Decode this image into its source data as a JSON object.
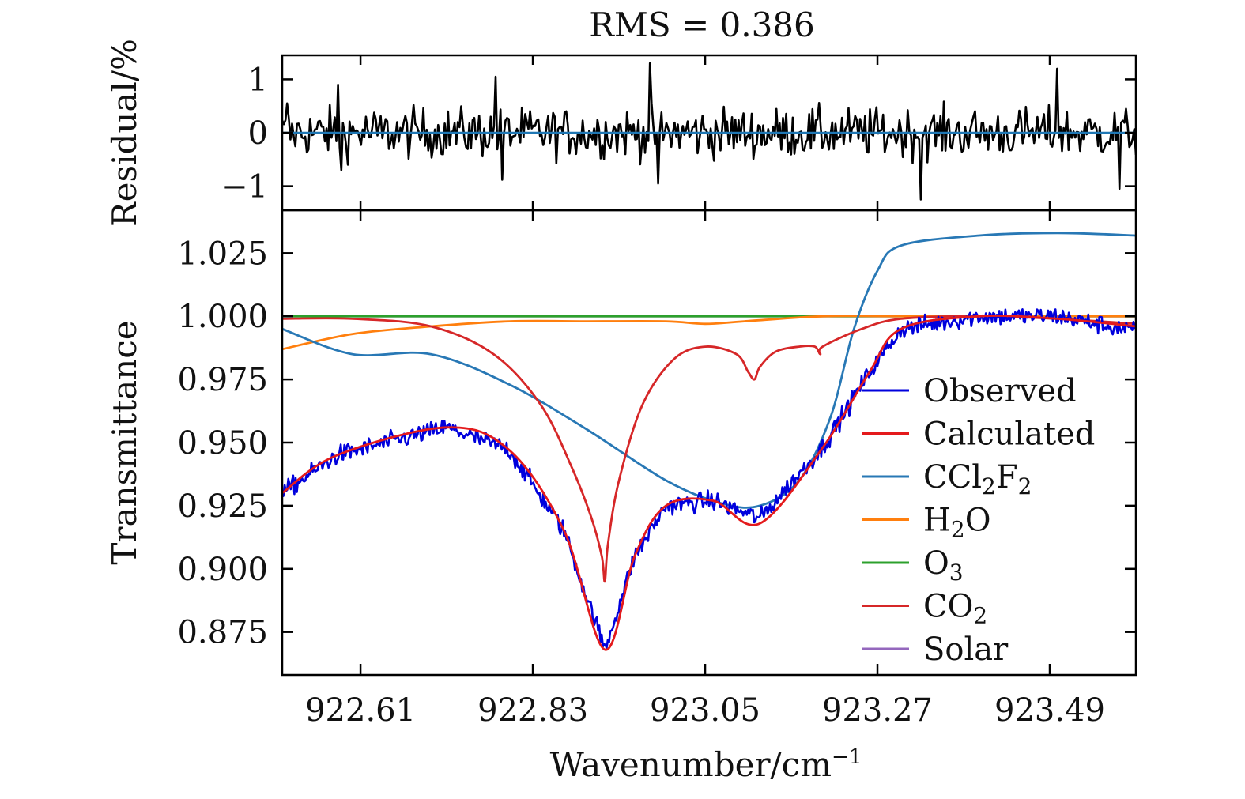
{
  "chart_data": [
    {
      "panel": "residual",
      "type": "line",
      "title_prefix": "RMS = ",
      "rms": "0.386",
      "ylabel": "Residual/%",
      "xlim": [
        922.51,
        923.6
      ],
      "ylim": [
        -1.45,
        1.45
      ],
      "y_ticks": [
        1,
        0,
        -1
      ],
      "y_tick_labels": [
        "1",
        "0",
        "−1"
      ],
      "zero_line_color": "#1f77b4",
      "residual_color": "#000000",
      "residual_x": [
        922.51,
        923.6
      ],
      "residual_peaks": [
        {
          "x": 922.517,
          "y": 0.55
        },
        {
          "x": 922.585,
          "y": -0.7
        },
        {
          "x": 922.582,
          "y": 0.9
        },
        {
          "x": 922.783,
          "y": 1.05
        },
        {
          "x": 922.79,
          "y": -0.88
        },
        {
          "x": 922.98,
          "y": 1.3
        },
        {
          "x": 922.99,
          "y": -0.95
        },
        {
          "x": 923.325,
          "y": -1.25
        },
        {
          "x": 923.5,
          "y": 1.2
        },
        {
          "x": 923.58,
          "y": -1.05
        }
      ]
    },
    {
      "panel": "transmittance",
      "type": "line",
      "xlabel": "Wavenumber/cm",
      "xlabel_sup": "−1",
      "ylabel": "Transmittance",
      "xlim": [
        922.51,
        923.6
      ],
      "ylim": [
        0.858,
        1.042
      ],
      "x_ticks": [
        922.61,
        922.83,
        923.05,
        923.27,
        923.49
      ],
      "x_tick_labels": [
        "922.61",
        "922.83",
        "923.05",
        "923.27",
        "923.49"
      ],
      "y_ticks": [
        1.025,
        1.0,
        0.975,
        0.95,
        0.925,
        0.9,
        0.875
      ],
      "y_tick_labels": [
        "1.025",
        "1.000",
        "0.975",
        "0.950",
        "0.925",
        "0.900",
        "0.875"
      ],
      "legend_position": "lower-right",
      "series": [
        {
          "name": "Observed",
          "color": "#0000dd",
          "noise": 0.004,
          "x": [
            922.51,
            922.58,
            922.72,
            922.8,
            922.87,
            922.922,
            922.96,
            923.0,
            923.06,
            923.12,
            923.2,
            923.26,
            923.3,
            923.4,
            923.5,
            923.6
          ],
          "y": [
            0.93,
            0.945,
            0.956,
            0.947,
            0.915,
            0.868,
            0.905,
            0.925,
            0.927,
            0.92,
            0.948,
            0.978,
            0.995,
            1.0,
            1.0,
            0.994
          ]
        },
        {
          "name": "Calculated",
          "color": "#e41a1c",
          "x": [
            922.51,
            922.58,
            922.72,
            922.8,
            922.87,
            922.922,
            922.96,
            923.0,
            923.06,
            923.12,
            923.2,
            923.26,
            923.3,
            923.4,
            923.5,
            923.6
          ],
          "y": [
            0.93,
            0.945,
            0.956,
            0.947,
            0.915,
            0.868,
            0.905,
            0.925,
            0.927,
            0.918,
            0.948,
            0.978,
            0.995,
            1.0,
            0.999,
            0.996
          ]
        },
        {
          "name": "CCl",
          "sub": "2",
          "name2": "F",
          "sub2": "2",
          "color": "#2878b5",
          "x": [
            922.51,
            922.6,
            922.7,
            922.8,
            922.9,
            923.0,
            923.07,
            923.12,
            923.17,
            923.21,
            923.24,
            923.27,
            923.3,
            923.4,
            923.5,
            923.6
          ],
          "y": [
            0.995,
            0.985,
            0.985,
            0.973,
            0.955,
            0.935,
            0.926,
            0.925,
            0.935,
            0.96,
            0.995,
            1.018,
            1.028,
            1.032,
            1.033,
            1.032
          ]
        },
        {
          "name": "H",
          "sub": "2",
          "name2": "O",
          "color": "#ff7f0e",
          "x": [
            922.51,
            922.6,
            922.7,
            922.8,
            922.9,
            923.0,
            923.05,
            923.1,
            923.2,
            923.3,
            923.6
          ],
          "y": [
            0.987,
            0.993,
            0.996,
            0.998,
            0.998,
            0.998,
            0.997,
            0.998,
            1.0,
            1.0,
            1.0
          ]
        },
        {
          "name": "O",
          "sub": "3",
          "color": "#2ca02c",
          "x": [
            922.51,
            923.6
          ],
          "y": [
            1.0,
            1.0
          ]
        },
        {
          "name": "CO",
          "sub": "2",
          "color": "#d62728",
          "x": [
            922.51,
            922.6,
            922.7,
            922.78,
            922.84,
            922.88,
            922.905,
            922.918,
            922.922,
            922.926,
            922.94,
            922.97,
            923.01,
            923.05,
            923.09,
            923.105,
            923.113,
            923.12,
            923.14,
            923.17,
            923.19,
            923.197,
            923.2,
            923.25,
            923.3,
            923.4,
            923.5,
            923.6
          ],
          "y": [
            0.999,
            0.999,
            0.996,
            0.985,
            0.965,
            0.94,
            0.92,
            0.905,
            0.895,
            0.91,
            0.935,
            0.965,
            0.983,
            0.988,
            0.985,
            0.978,
            0.975,
            0.98,
            0.986,
            0.988,
            0.988,
            0.985,
            0.988,
            0.995,
            0.999,
            1.0,
            0.999,
            0.997
          ]
        },
        {
          "name": "Solar",
          "color": "#9467bd",
          "x": [
            922.51,
            923.6
          ],
          "y": [
            1.0,
            1.0
          ]
        }
      ]
    }
  ]
}
